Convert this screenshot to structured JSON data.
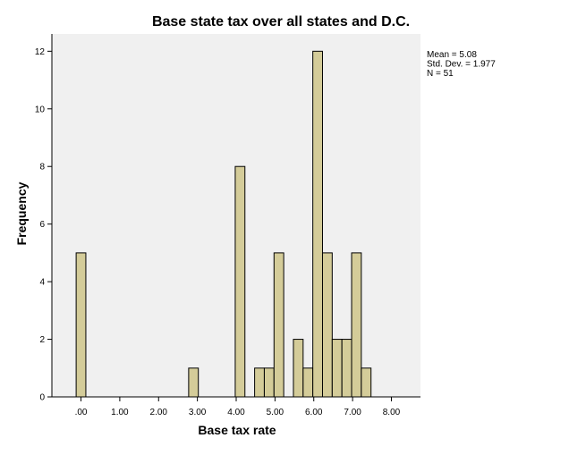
{
  "chart_data": {
    "type": "bar",
    "title": "Base state tax over all states and D.C.",
    "xlabel": "Base tax rate",
    "ylabel": "Frequency",
    "xlim": [
      -0.75,
      8.75
    ],
    "ylim": [
      0,
      12.6
    ],
    "x_ticks": [
      ".00",
      "1.00",
      "2.00",
      "3.00",
      "4.00",
      "5.00",
      "6.00",
      "7.00",
      "8.00"
    ],
    "y_ticks": [
      "0",
      "2",
      "4",
      "6",
      "8",
      "10",
      "12"
    ],
    "bin_width": 0.25,
    "bins": [
      {
        "x": 0.0,
        "count": 5
      },
      {
        "x": 2.9,
        "count": 1
      },
      {
        "x": 4.1,
        "count": 8
      },
      {
        "x": 4.6,
        "count": 1
      },
      {
        "x": 4.85,
        "count": 1
      },
      {
        "x": 5.1,
        "count": 5
      },
      {
        "x": 5.6,
        "count": 2
      },
      {
        "x": 5.85,
        "count": 1
      },
      {
        "x": 6.1,
        "count": 12
      },
      {
        "x": 6.35,
        "count": 5
      },
      {
        "x": 6.6,
        "count": 2
      },
      {
        "x": 6.85,
        "count": 2
      },
      {
        "x": 7.1,
        "count": 5
      },
      {
        "x": 7.35,
        "count": 1
      }
    ],
    "stats": [
      "Mean = 5.08",
      "Std. Dev. = 1.977",
      "N = 51"
    ],
    "bar_color": "#d4cc99",
    "bar_stroke": "#000000",
    "plot_background": "#f0f0f0",
    "grid": false
  }
}
